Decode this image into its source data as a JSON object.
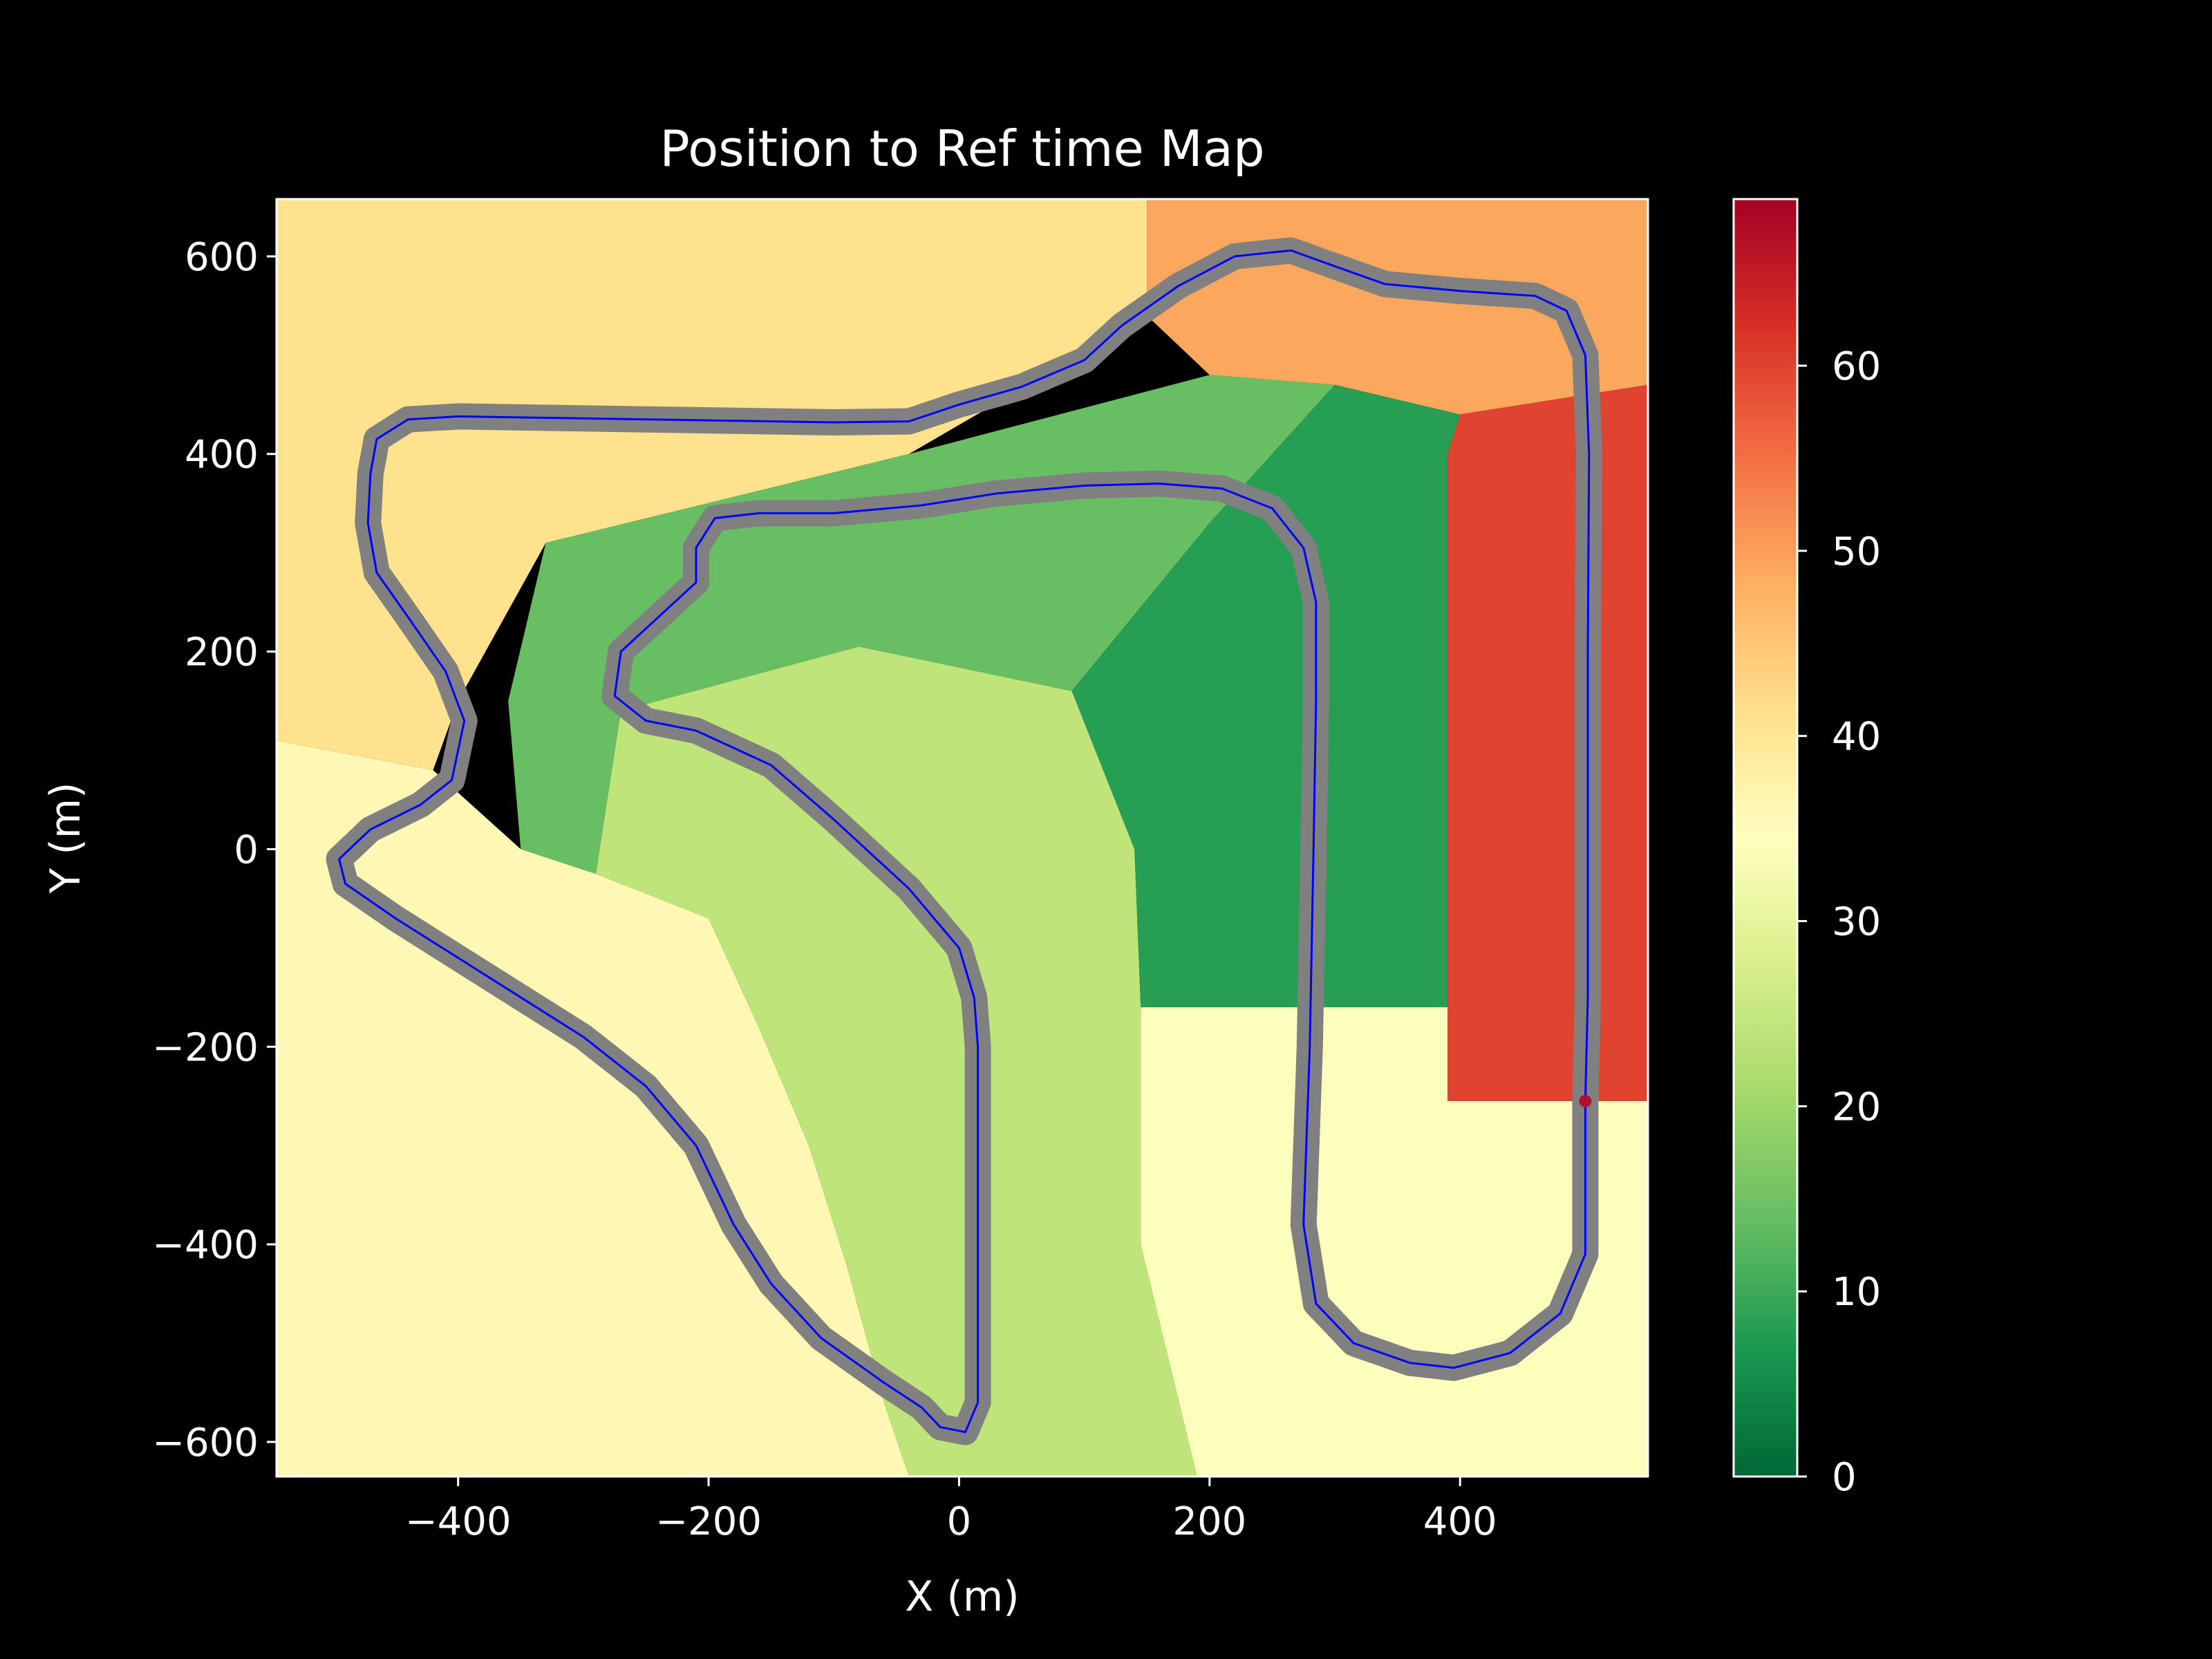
{
  "colors": {
    "background": "#000000",
    "foreground": "#ffffff",
    "track_band": "#808080",
    "racing_line": "#0000ff",
    "marker": "#b0122a"
  },
  "chart_data": {
    "type": "heatmap",
    "title": "Position to Ref time Map",
    "xlabel": "X (m)",
    "ylabel": "Y (m)",
    "xlim": [
      -545,
      550
    ],
    "ylim": [
      -635,
      658
    ],
    "xticks": [
      -400,
      -200,
      0,
      200,
      400
    ],
    "yticks": [
      -600,
      -400,
      -200,
      0,
      200,
      400,
      600
    ],
    "xtick_labels": [
      "−400",
      "−200",
      "0",
      "200",
      "400"
    ],
    "ytick_labels": [
      "−600",
      "−400",
      "−200",
      "0",
      "200",
      "400",
      "600"
    ],
    "grid": false,
    "colorbar": {
      "colormap": "RdYlGn_r",
      "range": [
        0,
        69
      ],
      "ticks": [
        0,
        10,
        20,
        30,
        40,
        50,
        60
      ],
      "tick_labels": [
        "0",
        "10",
        "20",
        "30",
        "40",
        "50",
        "60"
      ],
      "stops": [
        "#006837",
        "#1a9850",
        "#66bd63",
        "#a6d96a",
        "#d9ef8b",
        "#ffffbf",
        "#fee08b",
        "#fdae61",
        "#f46d43",
        "#d73027",
        "#a50026"
      ]
    },
    "track": [
      [
        500,
        -255
      ],
      [
        502,
        -150
      ],
      [
        502,
        0
      ],
      [
        502,
        200
      ],
      [
        503,
        400
      ],
      [
        500,
        500
      ],
      [
        485,
        545
      ],
      [
        460,
        560
      ],
      [
        400,
        565
      ],
      [
        340,
        572
      ],
      [
        300,
        590
      ],
      [
        265,
        606
      ],
      [
        220,
        600
      ],
      [
        175,
        570
      ],
      [
        130,
        530
      ],
      [
        100,
        495
      ],
      [
        50,
        468
      ],
      [
        0,
        450
      ],
      [
        -40,
        433
      ],
      [
        -100,
        432
      ],
      [
        -200,
        434
      ],
      [
        -300,
        436
      ],
      [
        -400,
        438
      ],
      [
        -440,
        435
      ],
      [
        -465,
        415
      ],
      [
        -470,
        380
      ],
      [
        -472,
        330
      ],
      [
        -465,
        280
      ],
      [
        -440,
        235
      ],
      [
        -410,
        180
      ],
      [
        -395,
        130
      ],
      [
        -405,
        70
      ],
      [
        -430,
        45
      ],
      [
        -470,
        20
      ],
      [
        -495,
        -10
      ],
      [
        -490,
        -35
      ],
      [
        -450,
        -70
      ],
      [
        -400,
        -110
      ],
      [
        -350,
        -150
      ],
      [
        -300,
        -190
      ],
      [
        -250,
        -240
      ],
      [
        -210,
        -300
      ],
      [
        -180,
        -380
      ],
      [
        -150,
        -440
      ],
      [
        -110,
        -495
      ],
      [
        -60,
        -540
      ],
      [
        -30,
        -565
      ],
      [
        -15,
        -585
      ],
      [
        5,
        -590
      ],
      [
        15,
        -560
      ],
      [
        15,
        -450
      ],
      [
        15,
        -300
      ],
      [
        15,
        -200
      ],
      [
        12,
        -150
      ],
      [
        0,
        -100
      ],
      [
        -40,
        -40
      ],
      [
        -100,
        30
      ],
      [
        -150,
        85
      ],
      [
        -210,
        120
      ],
      [
        -250,
        130
      ],
      [
        -275,
        155
      ],
      [
        -270,
        200
      ],
      [
        -240,
        235
      ],
      [
        -210,
        270
      ],
      [
        -210,
        305
      ],
      [
        -195,
        335
      ],
      [
        -160,
        340
      ],
      [
        -100,
        340
      ],
      [
        -30,
        348
      ],
      [
        30,
        360
      ],
      [
        100,
        368
      ],
      [
        160,
        370
      ],
      [
        210,
        365
      ],
      [
        250,
        345
      ],
      [
        275,
        305
      ],
      [
        285,
        250
      ],
      [
        285,
        150
      ],
      [
        283,
        0
      ],
      [
        280,
        -200
      ],
      [
        275,
        -380
      ],
      [
        285,
        -460
      ],
      [
        315,
        -500
      ],
      [
        360,
        -520
      ],
      [
        395,
        -525
      ],
      [
        440,
        -510
      ],
      [
        480,
        -470
      ],
      [
        500,
        -410
      ],
      [
        500,
        -330
      ],
      [
        500,
        -255
      ]
    ],
    "current_position": {
      "x": 500,
      "y": -255
    }
  }
}
